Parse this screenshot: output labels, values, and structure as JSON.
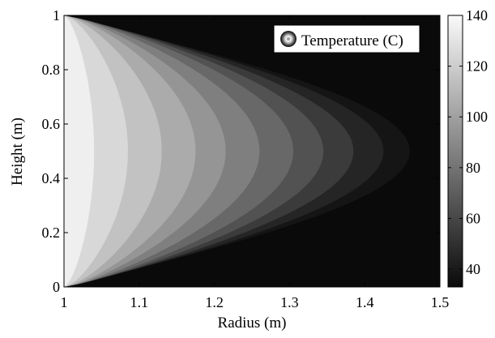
{
  "chart_data": {
    "type": "heatmap",
    "subtype": "filled-contour",
    "title": "",
    "xlabel": "Radius (m)",
    "ylabel": "Height (m)",
    "xlim": [
      1,
      1.5
    ],
    "ylim": [
      0,
      1
    ],
    "xticks": [
      1,
      1.1,
      1.2,
      1.3,
      1.4,
      1.5
    ],
    "xtick_labels": [
      "1",
      "1.1",
      "1.2",
      "1.3",
      "1.4",
      "1.5"
    ],
    "yticks": [
      0,
      0.2,
      0.4,
      0.6,
      0.8,
      1
    ],
    "ytick_labels": [
      "0",
      "0.2",
      "0.4",
      "0.6",
      "0.8",
      "1"
    ],
    "legend": {
      "label": "Temperature (C)",
      "position": "top-right"
    },
    "colorbar": {
      "label": "",
      "range": [
        33,
        140
      ],
      "ticks": [
        40,
        60,
        80,
        100,
        120,
        140
      ],
      "tick_labels": [
        "40",
        "60",
        "80",
        "100",
        "120",
        "140"
      ],
      "colormap": "gray"
    },
    "contour_levels": [
      135,
      125,
      115,
      105,
      95,
      85,
      75,
      65,
      55,
      45,
      38
    ],
    "contour_front_radius_at_mid_height": [
      1.04,
      1.085,
      1.13,
      1.175,
      1.215,
      1.26,
      1.305,
      1.345,
      1.385,
      1.425,
      1.46
    ],
    "background_level": 33,
    "grid": false
  }
}
